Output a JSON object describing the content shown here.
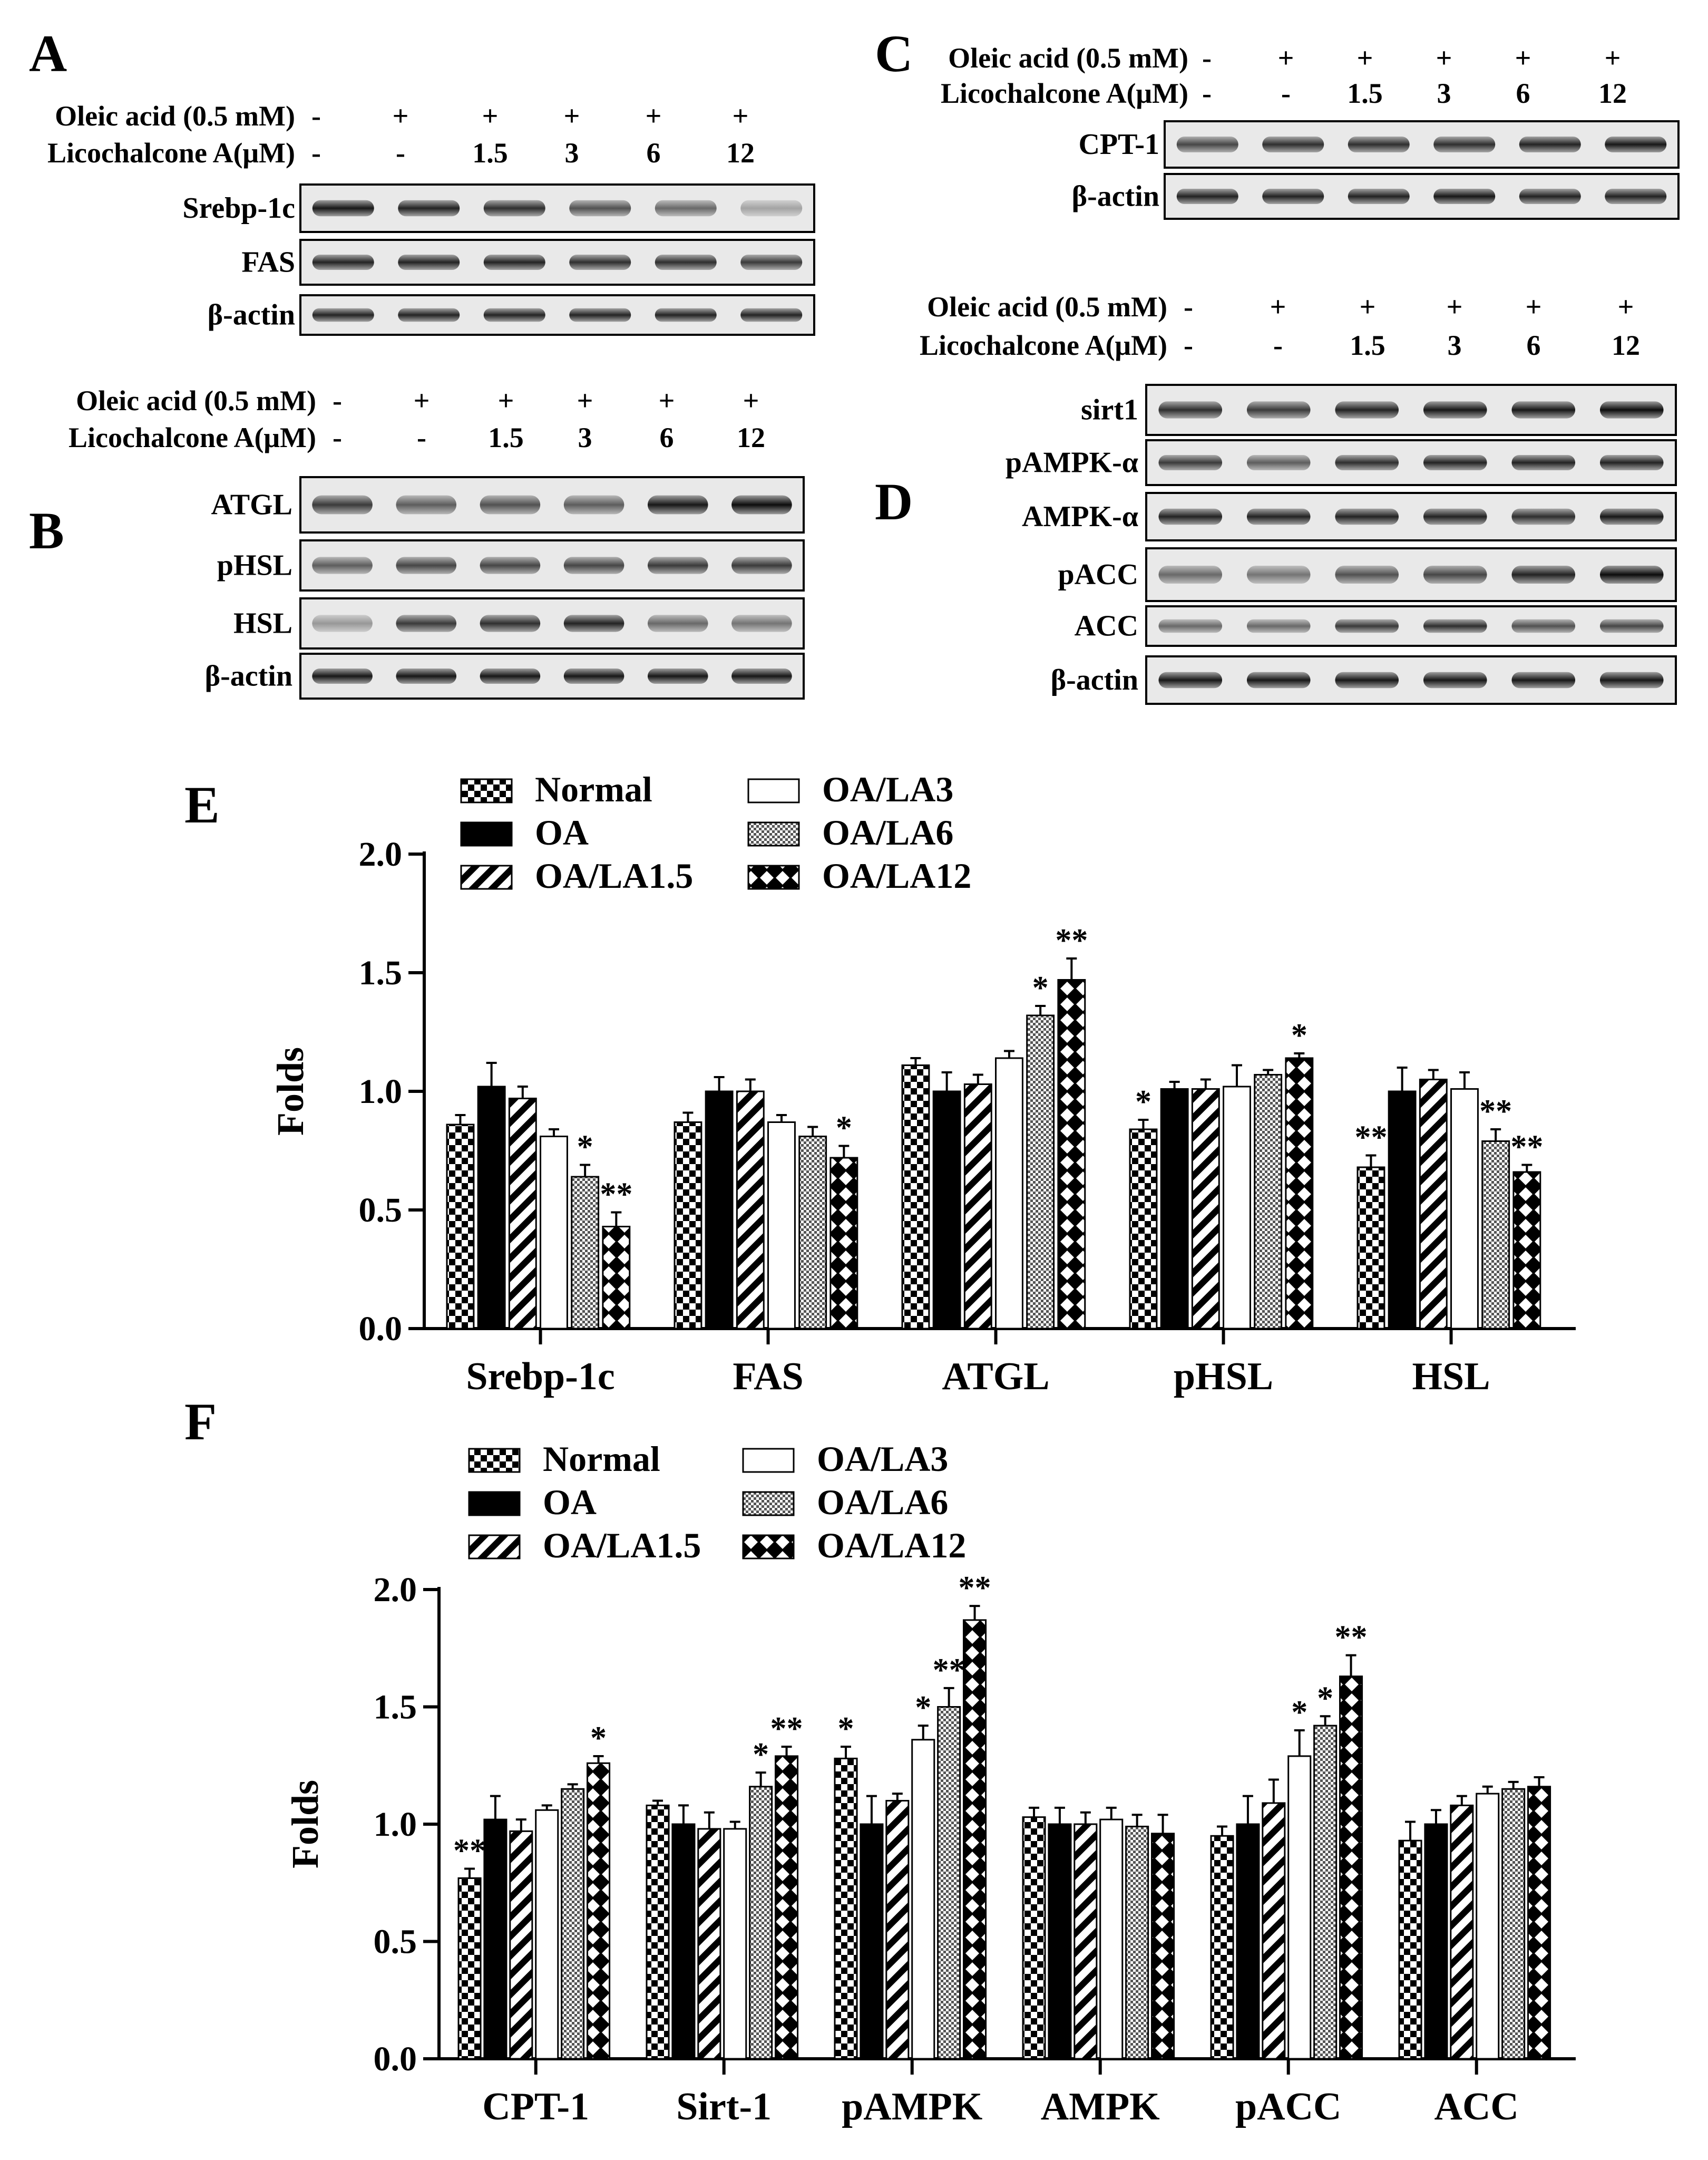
{
  "panels": {
    "A": {
      "letter": "A",
      "labels": {
        "oleic": "Oleic acid (0.5 mM)",
        "lico": "Licochalcone A(μM)"
      },
      "oleic_row": [
        "-",
        "+",
        "+",
        "+",
        "+",
        "+"
      ],
      "lico_row": [
        "-",
        "-",
        "1.5",
        "3",
        "6",
        "12"
      ],
      "bands": [
        {
          "label": "Srebp-1c",
          "intensity": [
            0.9,
            0.85,
            0.8,
            0.65,
            0.55,
            0.3
          ]
        },
        {
          "label": "FAS",
          "intensity": [
            0.85,
            0.85,
            0.85,
            0.8,
            0.8,
            0.75
          ]
        },
        {
          "label": "β-actin",
          "intensity": [
            0.85,
            0.85,
            0.85,
            0.85,
            0.85,
            0.85
          ]
        }
      ]
    },
    "B": {
      "letter": "B",
      "labels": {
        "oleic": "Oleic acid (0.5 mM)",
        "lico": "Licochalcone A(μM)"
      },
      "oleic_row": [
        "-",
        "+",
        "+",
        "+",
        "+",
        "+"
      ],
      "lico_row": [
        "-",
        "-",
        "1.5",
        "3",
        "6",
        "12"
      ],
      "bands": [
        {
          "label": "ATGL",
          "intensity": [
            0.75,
            0.6,
            0.65,
            0.6,
            0.9,
            0.95
          ]
        },
        {
          "label": "pHSL",
          "intensity": [
            0.6,
            0.7,
            0.7,
            0.7,
            0.75,
            0.75
          ]
        },
        {
          "label": "HSL",
          "intensity": [
            0.35,
            0.75,
            0.8,
            0.85,
            0.55,
            0.5
          ]
        },
        {
          "label": "β-actin",
          "intensity": [
            0.9,
            0.9,
            0.9,
            0.9,
            0.9,
            0.9
          ]
        }
      ]
    },
    "C": {
      "letter": "C",
      "labels": {
        "oleic": "Oleic acid (0.5 mM)",
        "lico": "Licochalcone A(μM)"
      },
      "oleic_row": [
        "-",
        "+",
        "+",
        "+",
        "+",
        "+"
      ],
      "lico_row": [
        "-",
        "-",
        "1.5",
        "3",
        "6",
        "12"
      ],
      "bands": [
        {
          "label": "CPT-1",
          "intensity": [
            0.7,
            0.8,
            0.8,
            0.8,
            0.85,
            0.9
          ]
        },
        {
          "label": "β-actin",
          "intensity": [
            0.85,
            0.85,
            0.85,
            0.9,
            0.85,
            0.85
          ]
        }
      ]
    },
    "D": {
      "letter": "D",
      "labels": {
        "oleic": "Oleic acid (0.5 mM)",
        "lico": "Licochalcone A(μM)"
      },
      "oleic_row": [
        "-",
        "+",
        "+",
        "+",
        "+",
        "+"
      ],
      "lico_row": [
        "-",
        "-",
        "1.5",
        "3",
        "6",
        "12"
      ],
      "bands": [
        {
          "label": "sirt1",
          "intensity": [
            0.8,
            0.75,
            0.85,
            0.9,
            0.9,
            0.95
          ]
        },
        {
          "label": "pAMPK-α",
          "intensity": [
            0.75,
            0.6,
            0.8,
            0.85,
            0.85,
            0.85
          ]
        },
        {
          "label": "AMPK-α",
          "intensity": [
            0.85,
            0.85,
            0.85,
            0.85,
            0.8,
            0.9
          ]
        },
        {
          "label": "pACC",
          "intensity": [
            0.55,
            0.5,
            0.65,
            0.7,
            0.85,
            0.95
          ]
        },
        {
          "label": "ACC",
          "intensity": [
            0.55,
            0.55,
            0.75,
            0.8,
            0.65,
            0.7
          ]
        },
        {
          "label": "β-actin",
          "intensity": [
            0.9,
            0.9,
            0.9,
            0.9,
            0.9,
            0.9
          ]
        }
      ]
    }
  },
  "chart_data": [
    {
      "panel": "E",
      "type": "bar",
      "title": "",
      "xlabel": "",
      "ylabel": "Folds",
      "ylim": [
        0,
        2.0
      ],
      "yticks": [
        "0.0",
        "0.5",
        "1.0",
        "1.5",
        "2.0"
      ],
      "categories": [
        "Srebp-1c",
        "FAS",
        "ATGL",
        "pHSL",
        "HSL"
      ],
      "legend": [
        "Normal",
        "OA",
        "OA/LA1.5",
        "OA/LA3",
        "OA/LA6",
        "OA/LA12"
      ],
      "series": [
        {
          "name": "Normal",
          "pattern": "checker",
          "values": [
            0.86,
            0.87,
            1.11,
            0.84,
            0.68
          ],
          "errors": [
            0.04,
            0.04,
            0.03,
            0.04,
            0.05
          ],
          "sig": [
            "",
            "",
            "",
            "*",
            "**"
          ]
        },
        {
          "name": "OA",
          "pattern": "solid",
          "values": [
            1.02,
            1.0,
            1.0,
            1.01,
            1.0
          ],
          "errors": [
            0.1,
            0.06,
            0.08,
            0.03,
            0.1
          ],
          "sig": [
            "",
            "",
            "",
            "",
            ""
          ]
        },
        {
          "name": "OA/LA1.5",
          "pattern": "diagonal",
          "values": [
            0.97,
            1.0,
            1.03,
            1.01,
            1.05
          ],
          "errors": [
            0.05,
            0.05,
            0.04,
            0.04,
            0.04
          ],
          "sig": [
            "",
            "",
            "",
            "",
            ""
          ]
        },
        {
          "name": "OA/LA3",
          "pattern": "white",
          "values": [
            0.81,
            0.87,
            1.14,
            1.02,
            1.01
          ],
          "errors": [
            0.03,
            0.03,
            0.03,
            0.09,
            0.07
          ],
          "sig": [
            "",
            "",
            "",
            "",
            ""
          ]
        },
        {
          "name": "OA/LA6",
          "pattern": "dots",
          "values": [
            0.64,
            0.81,
            1.32,
            1.07,
            0.79
          ],
          "errors": [
            0.05,
            0.04,
            0.04,
            0.02,
            0.05
          ],
          "sig": [
            "*",
            "",
            "*",
            "",
            "**"
          ]
        },
        {
          "name": "OA/LA12",
          "pattern": "diamond",
          "values": [
            0.43,
            0.72,
            1.47,
            1.14,
            0.66
          ],
          "errors": [
            0.06,
            0.05,
            0.09,
            0.02,
            0.03
          ],
          "sig": [
            "**",
            "*",
            "**",
            "*",
            "**"
          ]
        }
      ]
    },
    {
      "panel": "F",
      "type": "bar",
      "title": "",
      "xlabel": "",
      "ylabel": "Folds",
      "ylim": [
        0,
        2.0
      ],
      "yticks": [
        "0.0",
        "0.5",
        "1.0",
        "1.5",
        "2.0"
      ],
      "categories": [
        "CPT-1",
        "Sirt-1",
        "pAMPK",
        "AMPK",
        "pACC",
        "ACC"
      ],
      "legend": [
        "Normal",
        "OA",
        "OA/LA1.5",
        "OA/LA3",
        "OA/LA6",
        "OA/LA12"
      ],
      "series": [
        {
          "name": "Normal",
          "pattern": "checker",
          "values": [
            0.77,
            1.08,
            1.28,
            1.03,
            0.95,
            0.93
          ],
          "errors": [
            0.04,
            0.02,
            0.05,
            0.04,
            0.04,
            0.08
          ],
          "sig": [
            "**",
            "",
            "*",
            "",
            "",
            ""
          ]
        },
        {
          "name": "OA",
          "pattern": "solid",
          "values": [
            1.02,
            1.0,
            1.0,
            1.0,
            1.0,
            1.0
          ],
          "errors": [
            0.1,
            0.08,
            0.12,
            0.07,
            0.12,
            0.06
          ],
          "sig": [
            "",
            "",
            "",
            "",
            "",
            ""
          ]
        },
        {
          "name": "OA/LA1.5",
          "pattern": "diagonal",
          "values": [
            0.97,
            0.98,
            1.1,
            1.0,
            1.09,
            1.08
          ],
          "errors": [
            0.05,
            0.07,
            0.03,
            0.05,
            0.1,
            0.04
          ],
          "sig": [
            "",
            "",
            "",
            "",
            "",
            ""
          ]
        },
        {
          "name": "OA/LA3",
          "pattern": "white",
          "values": [
            1.06,
            0.98,
            1.36,
            1.02,
            1.29,
            1.13
          ],
          "errors": [
            0.02,
            0.03,
            0.06,
            0.05,
            0.11,
            0.03
          ],
          "sig": [
            "",
            "",
            "*",
            "",
            "*",
            ""
          ]
        },
        {
          "name": "OA/LA6",
          "pattern": "dots",
          "values": [
            1.15,
            1.16,
            1.5,
            0.99,
            1.42,
            1.15
          ],
          "errors": [
            0.02,
            0.06,
            0.08,
            0.05,
            0.04,
            0.03
          ],
          "sig": [
            "",
            "*",
            "**",
            "",
            "*",
            ""
          ]
        },
        {
          "name": "OA/LA12",
          "pattern": "diamond",
          "values": [
            1.26,
            1.29,
            1.87,
            0.96,
            1.63,
            1.16
          ],
          "errors": [
            0.03,
            0.04,
            0.06,
            0.08,
            0.09,
            0.04
          ],
          "sig": [
            "*",
            "**",
            "**",
            "",
            "**",
            ""
          ]
        }
      ]
    }
  ]
}
